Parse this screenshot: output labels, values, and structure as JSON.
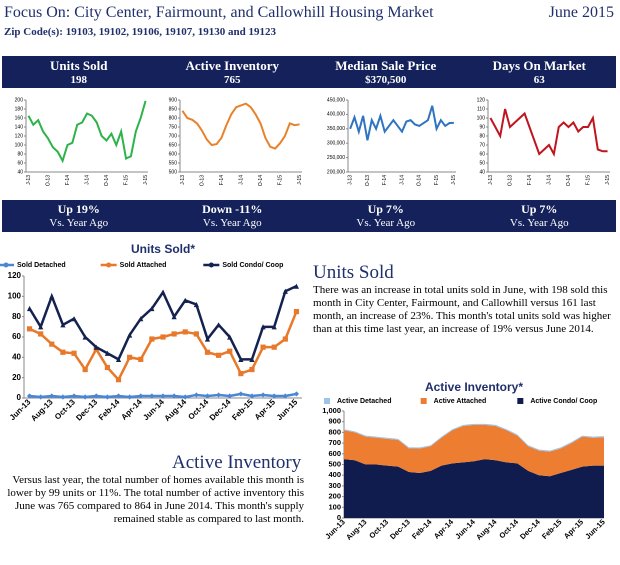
{
  "header": {
    "title": "Focus On: City Center, Fairmount, and Callowhill Housing Market",
    "date": "June 2015",
    "zip": "Zip Code(s): 19103, 19102, 19106, 19107, 19130 and 19123"
  },
  "kpis": [
    {
      "label": "Units Sold",
      "value": "198"
    },
    {
      "label": "Active Inventory",
      "value": "765"
    },
    {
      "label": "Median Sale Price",
      "value": "$370,500"
    },
    {
      "label": "Days On Market",
      "value": "63"
    }
  ],
  "changes": [
    {
      "value": "Up  19%",
      "note": "Vs. Year Ago"
    },
    {
      "value": "Down  -11%",
      "note": "Vs. Year Ago"
    },
    {
      "value": "Up  7%",
      "note": "Vs. Year Ago"
    },
    {
      "value": "Up  7%",
      "note": "Vs. Year Ago"
    }
  ],
  "units_text": {
    "heading": "Units Sold",
    "body": "There was  an increase in total units sold in June, with 198 sold this month in City Center, Fairmount, and Callowhill versus 161 last month, an increase of 23%. This month's total units sold was higher than at this time last year, an increase of 19% versus June 2014."
  },
  "inventory_text": {
    "heading": "Active Inventory",
    "body": "Versus last year, the total number of homes available this month is lower by 99 units or 11%. The total number of active inventory this June was 765 compared to  864 in June 2014. This month's supply remained stable as compared to last month."
  },
  "chart_data": [
    {
      "type": "line",
      "categories": [
        "J-13",
        null,
        null,
        null,
        "O-13",
        null,
        null,
        null,
        "F-14",
        null,
        null,
        null,
        "J-14",
        null,
        null,
        null,
        "O-14",
        null,
        null,
        null,
        "F-15",
        null,
        null,
        null,
        "J-15"
      ],
      "series": [
        {
          "name": "Units Sold",
          "color": "#2db34a",
          "values": [
            165,
            145,
            155,
            130,
            115,
            95,
            85,
            65,
            100,
            105,
            145,
            150,
            170,
            165,
            150,
            120,
            110,
            125,
            100,
            130,
            70,
            75,
            130,
            160,
            198
          ]
        }
      ],
      "ylim": [
        40,
        200
      ],
      "yticks": [
        40,
        60,
        80,
        100,
        120,
        140,
        160,
        180,
        200
      ]
    },
    {
      "type": "line",
      "categories": [
        "J-13",
        null,
        null,
        null,
        "O-13",
        null,
        null,
        null,
        "F-14",
        null,
        null,
        null,
        "J-14",
        null,
        null,
        null,
        "O-14",
        null,
        null,
        null,
        "F-15",
        null,
        null,
        null,
        "J-15"
      ],
      "series": [
        {
          "name": "Active Inventory",
          "color": "#e8822a",
          "values": [
            840,
            800,
            790,
            770,
            730,
            680,
            650,
            655,
            690,
            760,
            820,
            860,
            870,
            880,
            860,
            820,
            770,
            690,
            640,
            630,
            660,
            700,
            770,
            760,
            765
          ]
        }
      ],
      "ylim": [
        500,
        900
      ],
      "yticks": [
        500,
        550,
        600,
        650,
        700,
        750,
        800,
        850,
        900
      ]
    },
    {
      "type": "line",
      "categories": [
        "J-13",
        null,
        null,
        null,
        "O-13",
        null,
        null,
        null,
        "F-14",
        null,
        null,
        null,
        "J-14",
        null,
        null,
        null,
        "O-14",
        null,
        null,
        null,
        "F-15",
        null,
        null,
        null,
        "J-15"
      ],
      "series": [
        {
          "name": "Median Sale Price",
          "color": "#2f74c0",
          "values": [
            350000,
            390000,
            340000,
            395000,
            310000,
            380000,
            350000,
            395000,
            340000,
            360000,
            380000,
            360000,
            340000,
            375000,
            380000,
            365000,
            360000,
            370000,
            380000,
            430000,
            350000,
            380000,
            360000,
            370000,
            370500
          ]
        }
      ],
      "ylim": [
        200000,
        450000
      ],
      "yticks": [
        {
          "value": 200000,
          "label": "200,000"
        },
        {
          "value": 250000,
          "label": "250,000"
        },
        {
          "value": 300000,
          "label": "300,000"
        },
        {
          "value": 350000,
          "label": "350,000"
        },
        {
          "value": 400000,
          "label": "400,000"
        },
        {
          "value": 450000,
          "label": "450,000"
        }
      ]
    },
    {
      "type": "line",
      "categories": [
        "J-13",
        null,
        null,
        null,
        "O-13",
        null,
        null,
        null,
        "F-14",
        null,
        null,
        null,
        "J-14",
        null,
        null,
        null,
        "O-14",
        null,
        null,
        null,
        "F-15",
        null,
        null,
        null,
        "J-15"
      ],
      "series": [
        {
          "name": "Days On Market",
          "color": "#c0141e",
          "values": [
            100,
            90,
            80,
            110,
            90,
            95,
            100,
            105,
            90,
            75,
            60,
            65,
            70,
            60,
            90,
            95,
            90,
            95,
            85,
            90,
            90,
            100,
            65,
            63,
            63
          ]
        }
      ],
      "ylim": [
        40,
        120
      ],
      "yticks": [
        40,
        50,
        60,
        70,
        80,
        90,
        100,
        110,
        120
      ]
    },
    {
      "type": "line",
      "title": "Units Sold*",
      "legend": "top",
      "categories": [
        "Jun-13",
        null,
        "Aug-13",
        null,
        "Oct-13",
        null,
        "Dec-13",
        null,
        "Feb-14",
        null,
        "Apr-14",
        null,
        "Jun-14",
        null,
        "Aug-14",
        null,
        "Oct-14",
        null,
        "Dec-14",
        null,
        "Feb-15",
        null,
        "Apr-15",
        null,
        "Jun-15"
      ],
      "series": [
        {
          "name": "Sold Detached",
          "color": "#4a86d6",
          "marker": "diamond",
          "values": [
            2,
            1,
            2,
            1,
            2,
            1,
            2,
            1,
            2,
            1,
            2,
            2,
            2,
            2,
            1,
            3,
            2,
            3,
            2,
            4,
            2,
            3,
            2,
            2,
            4
          ]
        },
        {
          "name": "Sold Attached",
          "color": "#e8782a",
          "marker": "square",
          "values": [
            68,
            63,
            53,
            45,
            44,
            28,
            48,
            30,
            18,
            40,
            38,
            58,
            60,
            63,
            65,
            63,
            45,
            42,
            46,
            24,
            28,
            50,
            50,
            58,
            85
          ]
        },
        {
          "name": "Sold Condo/ Coop",
          "color": "#14224f",
          "marker": "triangle",
          "values": [
            88,
            70,
            100,
            72,
            78,
            60,
            50,
            44,
            38,
            62,
            78,
            88,
            104,
            80,
            96,
            92,
            58,
            72,
            60,
            38,
            38,
            70,
            70,
            105,
            110
          ]
        }
      ],
      "ylim": [
        0,
        120
      ],
      "yticks": [
        0,
        20,
        40,
        60,
        80,
        100,
        120
      ]
    },
    {
      "type": "area",
      "stacked": true,
      "title": "Active Inventory*",
      "legend": "top",
      "categories": [
        "Jun-13",
        null,
        "Aug-13",
        null,
        "Oct-13",
        null,
        "Dec-13",
        null,
        "Feb-14",
        null,
        "Apr-14",
        null,
        "Jun-14",
        null,
        "Aug-14",
        null,
        "Oct-14",
        null,
        "Dec-14",
        null,
        "Feb-15",
        null,
        "Apr-15",
        null,
        "Jun-15"
      ],
      "series": [
        {
          "name": "Active Detached",
          "color": "#9dc3e6",
          "values": [
            10,
            10,
            10,
            10,
            10,
            10,
            10,
            10,
            10,
            10,
            10,
            10,
            10,
            10,
            10,
            10,
            10,
            10,
            10,
            10,
            10,
            10,
            10,
            10,
            10
          ]
        },
        {
          "name": "Active Attached",
          "color": "#ed7d31",
          "values": [
            270,
            260,
            260,
            250,
            250,
            250,
            220,
            230,
            230,
            260,
            310,
            340,
            340,
            320,
            320,
            300,
            260,
            230,
            230,
            230,
            230,
            250,
            280,
            260,
            265
          ]
        },
        {
          "name": "Active Condo/ Coop",
          "color": "#0f1c4d",
          "values": [
            550,
            540,
            500,
            500,
            490,
            480,
            430,
            420,
            440,
            490,
            510,
            520,
            530,
            550,
            540,
            520,
            510,
            440,
            400,
            390,
            420,
            450,
            480,
            490,
            490
          ]
        }
      ],
      "ylim": [
        0,
        1000
      ],
      "yticks": [
        0,
        100,
        200,
        300,
        400,
        500,
        600,
        700,
        800,
        900,
        {
          "value": 1000,
          "label": "1,000"
        }
      ]
    }
  ]
}
